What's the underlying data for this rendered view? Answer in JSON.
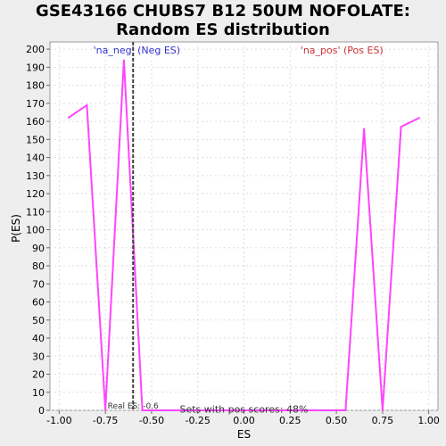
{
  "chart_data": {
    "type": "line",
    "title": "GSE43166 CHUBS7 B12 50UM NOFOLATE: Random ES distribution",
    "title_lines": [
      "GSE43166 CHUBS7 B12 50UM NOFOLATE:",
      "Random ES distribution"
    ],
    "xlabel": "ES",
    "ylabel": "P(ES)",
    "xlim": [
      -1.05,
      1.05
    ],
    "ylim": [
      0,
      204
    ],
    "xticks": [
      -1.0,
      -0.75,
      -0.5,
      -0.25,
      0.0,
      0.25,
      0.5,
      0.75,
      1.0
    ],
    "xtick_labels": [
      "-1.00",
      "-0.75",
      "-0.50",
      "-0.25",
      "0.00",
      "0.25",
      "0.50",
      "0.75",
      "1.00"
    ],
    "yticks": [
      0,
      10,
      20,
      30,
      40,
      50,
      60,
      70,
      80,
      90,
      100,
      110,
      120,
      130,
      140,
      150,
      160,
      170,
      180,
      190,
      200
    ],
    "grid": true,
    "series": [
      {
        "color": "#ff44ff",
        "x": [
          -0.95,
          -0.85,
          -0.75,
          -0.65,
          -0.55,
          -0.45,
          -0.35,
          -0.25,
          -0.15,
          -0.05,
          0.05,
          0.15,
          0.25,
          0.35,
          0.45,
          0.55,
          0.65,
          0.75,
          0.85,
          0.95
        ],
        "y": [
          162,
          169,
          0,
          194,
          0,
          0,
          0,
          0,
          0,
          0,
          0,
          0,
          0,
          0,
          0,
          0,
          156,
          0,
          157,
          162
        ]
      }
    ],
    "real_es": {
      "x": -0.6,
      "label": "Real ES: -0.6",
      "color": "#404040"
    },
    "annotations": [
      {
        "text": "'na_neg' (Neg ES)",
        "x": -0.58,
        "y": 199.5,
        "anchor": "middle",
        "color": "#3333cc"
      },
      {
        "text": "'na_pos' (Pos ES)",
        "x": 0.53,
        "y": 199.5,
        "anchor": "middle",
        "color": "#cc3333"
      },
      {
        "text": "Sets with pos scores: 48%",
        "x": 0.0,
        "y": 0.8,
        "anchor": "middle",
        "color": "#333333"
      }
    ]
  }
}
